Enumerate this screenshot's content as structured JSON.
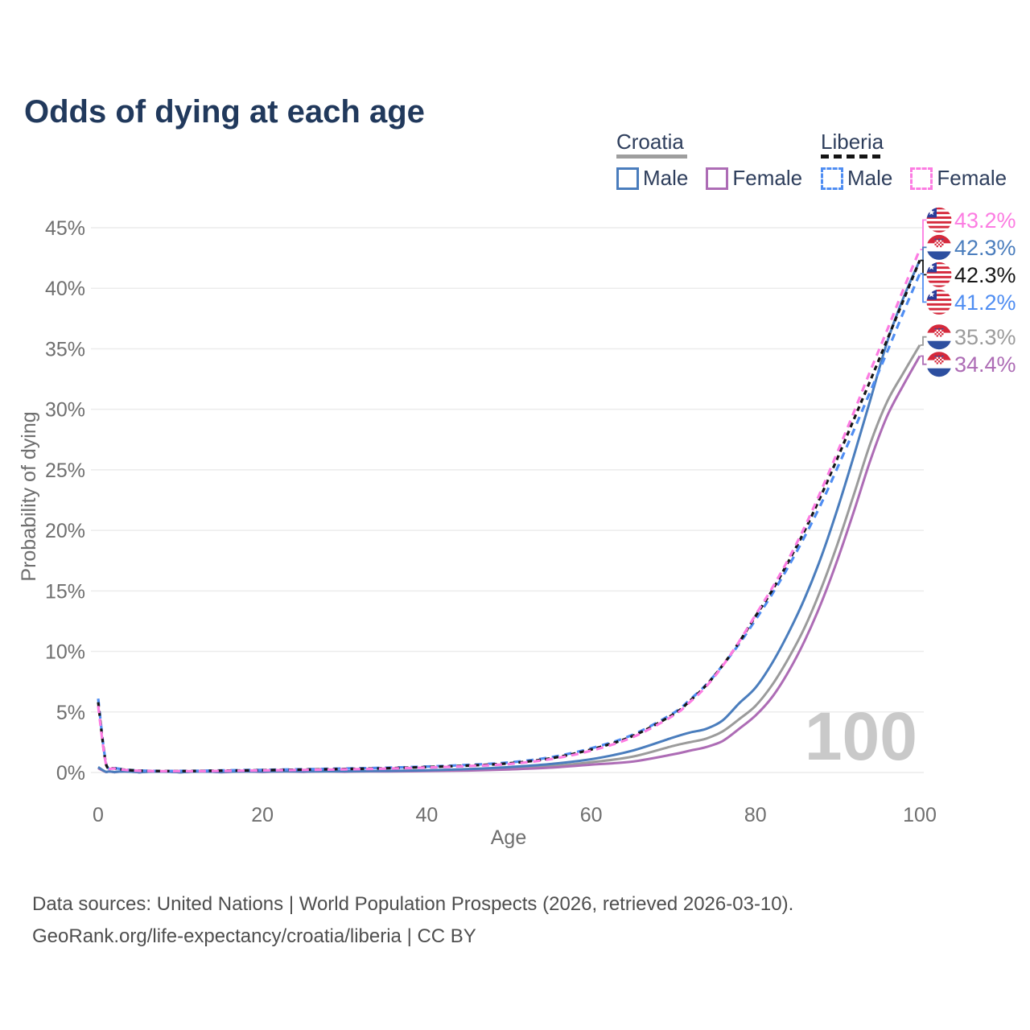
{
  "page": {
    "title": "Odds of dying at each age",
    "watermark": "100",
    "footer_line1": "Data sources: United Nations | World Population Prospects (2026, retrieved 2026-03-10).",
    "footer_line2": "GeoRank.org/life-expectancy/croatia/liberia | CC BY"
  },
  "legend": {
    "groups": [
      {
        "country": "Croatia",
        "line_style": "solid",
        "underline_color": "#9e9e9e",
        "items": [
          {
            "label": "Male",
            "color": "#4a7dbd",
            "dashed": false
          },
          {
            "label": "Female",
            "color": "#ad6cb5",
            "dashed": false
          }
        ]
      },
      {
        "country": "Liberia",
        "line_style": "dashed",
        "underline_color": "#141414",
        "items": [
          {
            "label": "Male",
            "color": "#4f8df2",
            "dashed": true
          },
          {
            "label": "Female",
            "color": "#fc7ce2",
            "dashed": true
          }
        ]
      }
    ]
  },
  "chart_data": {
    "type": "line",
    "title": "Odds of dying at each age",
    "xlabel": "Age",
    "ylabel": "Probability of dying",
    "x_ticks": [
      0,
      20,
      40,
      60,
      80,
      100
    ],
    "y_ticks": [
      "0%",
      "5%",
      "10%",
      "15%",
      "20%",
      "25%",
      "30%",
      "35%",
      "40%",
      "45%"
    ],
    "y_tick_values": [
      0,
      5,
      10,
      15,
      20,
      25,
      30,
      35,
      40,
      45
    ],
    "xlim": [
      0,
      100
    ],
    "ylim": [
      0,
      47
    ],
    "grid": "horizontal",
    "legend_position": "top-right",
    "hovered_age": "100",
    "ages": [
      0,
      1,
      2,
      5,
      10,
      15,
      20,
      25,
      30,
      35,
      40,
      45,
      50,
      55,
      60,
      65,
      70,
      72,
      74,
      76,
      78,
      80,
      82,
      84,
      86,
      88,
      90,
      92,
      94,
      96,
      98,
      100
    ],
    "series": [
      {
        "name": "Croatia Both sexes",
        "country": "Croatia",
        "sex": "Both sexes",
        "color": "#9b9b9b",
        "dash_pattern": "",
        "flag": "croatia",
        "end_label": "35.3%",
        "values": [
          0.4,
          0.035,
          0.025,
          0.018,
          0.015,
          0.03,
          0.06,
          0.07,
          0.08,
          0.1,
          0.14,
          0.21,
          0.33,
          0.52,
          0.85,
          1.3,
          2.2,
          2.5,
          2.8,
          3.4,
          4.4,
          5.5,
          7.2,
          9.4,
          12.0,
          15.2,
          18.9,
          23.0,
          27.2,
          30.6,
          33.0,
          35.3
        ]
      },
      {
        "name": "Croatia Female",
        "country": "Croatia",
        "sex": "Female",
        "color": "#ad6cb5",
        "dash_pattern": "",
        "flag": "croatia",
        "end_label": "34.4%",
        "values": [
          0.35,
          0.03,
          0.02,
          0.015,
          0.013,
          0.02,
          0.04,
          0.05,
          0.06,
          0.08,
          0.11,
          0.16,
          0.25,
          0.4,
          0.65,
          0.9,
          1.5,
          1.8,
          2.1,
          2.6,
          3.6,
          4.7,
          6.2,
          8.3,
          10.9,
          14.0,
          17.6,
          21.6,
          25.8,
          29.4,
          32.0,
          34.4
        ]
      },
      {
        "name": "Croatia Male",
        "country": "Croatia",
        "sex": "Male",
        "color": "#4a7dbd",
        "dash_pattern": "",
        "flag": "croatia",
        "end_label": "42.3%",
        "values": [
          0.45,
          0.04,
          0.03,
          0.02,
          0.02,
          0.04,
          0.08,
          0.09,
          0.1,
          0.13,
          0.18,
          0.28,
          0.45,
          0.7,
          1.1,
          1.8,
          2.9,
          3.3,
          3.6,
          4.3,
          5.7,
          7.0,
          9.0,
          11.5,
          14.4,
          17.8,
          21.8,
          26.2,
          30.8,
          35.5,
          39.2,
          42.3
        ]
      },
      {
        "name": "Liberia Male",
        "country": "Liberia",
        "sex": "Male",
        "color": "#4f8df2",
        "dash_pattern": "9 7",
        "flag": "liberia",
        "end_label": "41.2%",
        "values": [
          6.1,
          0.62,
          0.37,
          0.16,
          0.13,
          0.17,
          0.22,
          0.27,
          0.33,
          0.39,
          0.49,
          0.63,
          0.83,
          1.25,
          2.0,
          3.1,
          4.9,
          6.0,
          7.25,
          8.85,
          10.6,
          12.6,
          14.7,
          17.0,
          19.5,
          22.2,
          25.2,
          28.3,
          31.5,
          34.7,
          38.0,
          41.2
        ]
      },
      {
        "name": "Liberia Both sexes",
        "country": "Liberia",
        "sex": "Both sexes",
        "color": "#161616",
        "dash_pattern": "6 5",
        "flag": "liberia",
        "end_label": "42.3%",
        "values": [
          5.8,
          0.58,
          0.34,
          0.15,
          0.12,
          0.15,
          0.19,
          0.24,
          0.29,
          0.35,
          0.45,
          0.57,
          0.76,
          1.16,
          1.9,
          3.0,
          4.8,
          5.9,
          7.2,
          8.85,
          10.75,
          12.9,
          15.0,
          17.4,
          20.0,
          22.9,
          26.0,
          29.2,
          32.4,
          35.7,
          39.0,
          42.3
        ]
      },
      {
        "name": "Liberia Female",
        "country": "Liberia",
        "sex": "Female",
        "color": "#fc7ce2",
        "dash_pattern": "9 7",
        "flag": "liberia",
        "end_label": "43.2%",
        "values": [
          5.5,
          0.55,
          0.32,
          0.14,
          0.11,
          0.13,
          0.17,
          0.21,
          0.26,
          0.32,
          0.41,
          0.53,
          0.7,
          1.1,
          1.8,
          2.9,
          4.7,
          5.8,
          7.1,
          8.8,
          10.8,
          13.0,
          15.2,
          17.6,
          20.3,
          23.3,
          26.5,
          29.8,
          33.2,
          36.5,
          39.9,
          43.2
        ]
      }
    ]
  }
}
